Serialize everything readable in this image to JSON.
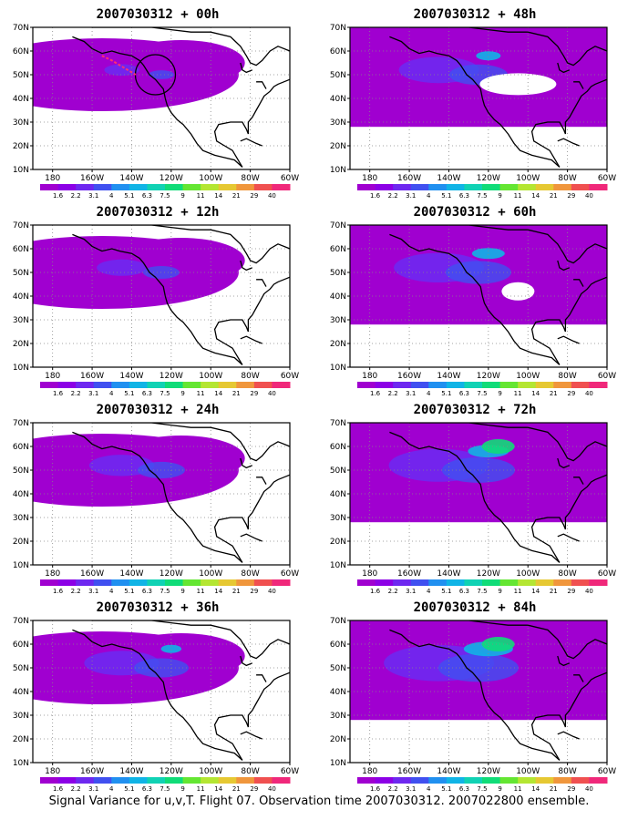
{
  "panels": [
    {
      "title": "2007030312 + 00h",
      "lead_hours": 0,
      "intensity": 0.35
    },
    {
      "title": "2007030312 + 48h",
      "lead_hours": 48,
      "intensity": 0.8
    },
    {
      "title": "2007030312 + 12h",
      "lead_hours": 12,
      "intensity": 0.5
    },
    {
      "title": "2007030312 + 60h",
      "lead_hours": 60,
      "intensity": 0.9
    },
    {
      "title": "2007030312 + 24h",
      "lead_hours": 24,
      "intensity": 0.65
    },
    {
      "title": "2007030312 + 72h",
      "lead_hours": 72,
      "intensity": 1.0
    },
    {
      "title": "2007030312 + 36h",
      "lead_hours": 36,
      "intensity": 0.75
    },
    {
      "title": "2007030312 + 84h",
      "lead_hours": 84,
      "intensity": 1.1
    }
  ],
  "y_ticks": [
    "70N",
    "60N",
    "50N",
    "40N",
    "30N",
    "20N",
    "10N"
  ],
  "x_ticks": [
    "180",
    "160W",
    "140W",
    "120W",
    "100W",
    "80W",
    "60W"
  ],
  "colorbar": {
    "labels": [
      "1.6",
      "2.2",
      "3.1",
      "4",
      "5.1",
      "6.3",
      "7.5",
      "9",
      "11",
      "14",
      "21",
      "29",
      "40"
    ],
    "colors": [
      "#a000d0",
      "#8c00e6",
      "#6e28f0",
      "#4050f0",
      "#2090f0",
      "#10b4e6",
      "#10d2b4",
      "#10dc78",
      "#64e632",
      "#b4e632",
      "#e6c832",
      "#f0963c",
      "#f05050",
      "#f0287a"
    ]
  },
  "footer": "Signal Variance for u,v,T. Flight 07. Observation time 2007030312. 2007022800 ensemble."
}
